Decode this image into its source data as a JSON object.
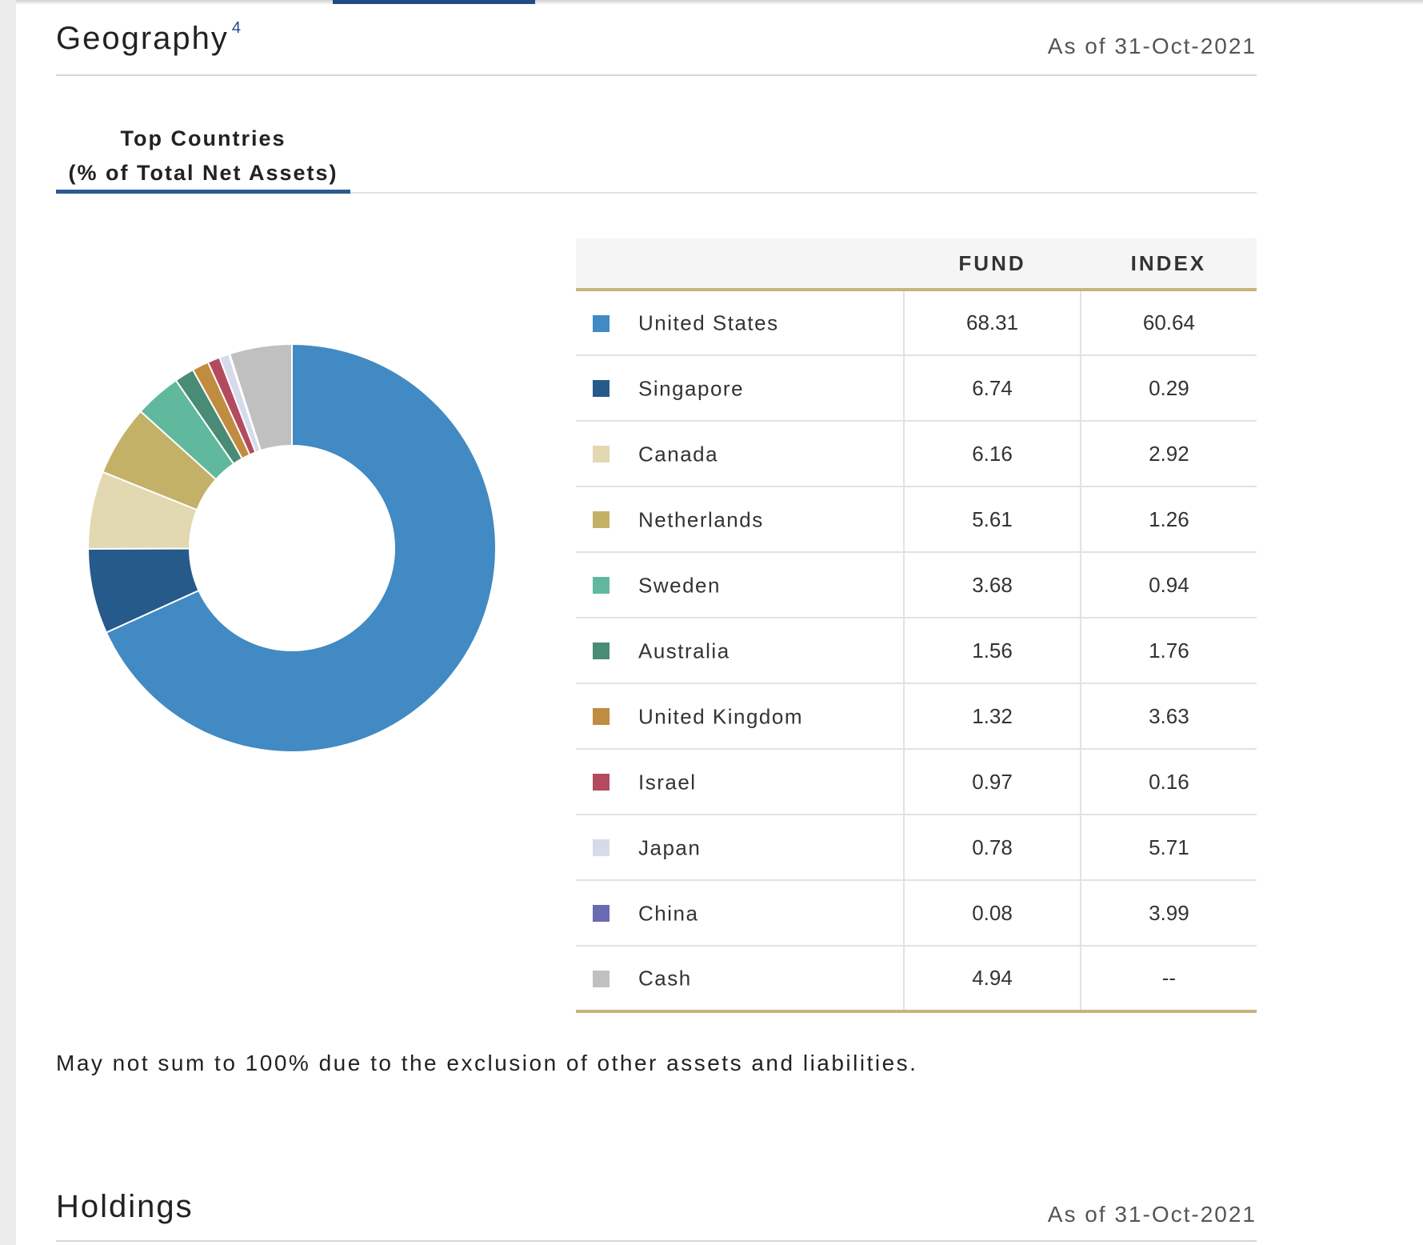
{
  "geography": {
    "title": "Geography",
    "footnote_ref": "4",
    "as_of": "As of 31-Oct-2021"
  },
  "subtab": {
    "line1": "Top Countries",
    "line2": "(% of Total Net Assets)"
  },
  "table": {
    "headers": [
      "",
      "FUND",
      "INDEX"
    ]
  },
  "chart_data": {
    "type": "pie",
    "donut": true,
    "start": "12 o'clock",
    "direction": "clockwise",
    "series": [
      {
        "name": "FUND",
        "values": [
          68.31,
          6.74,
          6.16,
          5.61,
          3.68,
          1.56,
          1.32,
          0.97,
          0.78,
          0.08,
          4.94
        ]
      },
      {
        "name": "INDEX",
        "values": [
          60.64,
          0.29,
          2.92,
          1.26,
          0.94,
          1.76,
          3.63,
          0.16,
          5.71,
          3.99,
          "--"
        ]
      }
    ],
    "categories": [
      "United States",
      "Singapore",
      "Canada",
      "Netherlands",
      "Sweden",
      "Australia",
      "United Kingdom",
      "Israel",
      "Japan",
      "China",
      "Cash"
    ],
    "colors": [
      "#418ac3",
      "#265a8a",
      "#e2d8b2",
      "#c3b168",
      "#60b99c",
      "#4a8b76",
      "#c08c3f",
      "#b34a60",
      "#d6daea",
      "#6a6bb4",
      "#c0c0c0"
    ]
  },
  "rows": [
    {
      "country": "United States",
      "fund": "68.31",
      "index": "60.64"
    },
    {
      "country": "Singapore",
      "fund": "6.74",
      "index": "0.29"
    },
    {
      "country": "Canada",
      "fund": "6.16",
      "index": "2.92"
    },
    {
      "country": "Netherlands",
      "fund": "5.61",
      "index": "1.26"
    },
    {
      "country": "Sweden",
      "fund": "3.68",
      "index": "0.94"
    },
    {
      "country": "Australia",
      "fund": "1.56",
      "index": "1.76"
    },
    {
      "country": "United Kingdom",
      "fund": "1.32",
      "index": "3.63"
    },
    {
      "country": "Israel",
      "fund": "0.97",
      "index": "0.16"
    },
    {
      "country": "Japan",
      "fund": "0.78",
      "index": "5.71"
    },
    {
      "country": "China",
      "fund": "0.08",
      "index": "3.99"
    },
    {
      "country": "Cash",
      "fund": "4.94",
      "index": "--"
    }
  ],
  "footnote": "May not sum to 100% due to the exclusion of other assets and liabilities.",
  "holdings": {
    "title": "Holdings",
    "as_of": "As of 31-Oct-2021"
  }
}
